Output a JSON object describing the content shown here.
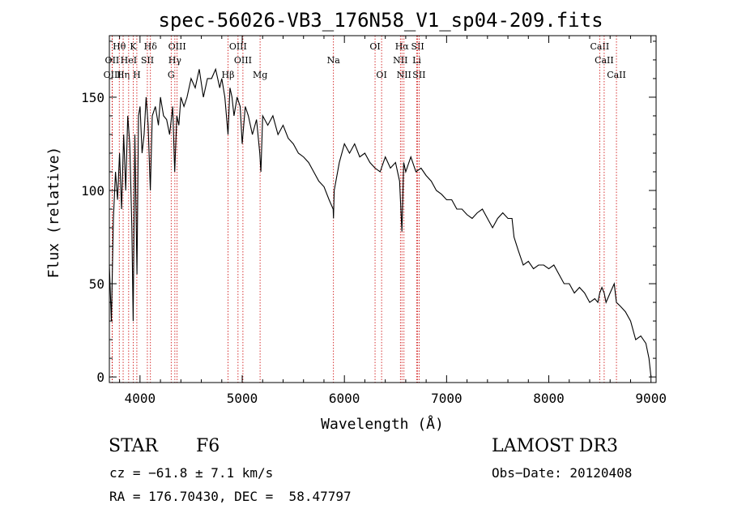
{
  "chart_data": {
    "type": "line",
    "title": "spec-56026-VB3_176N58_V1_sp04-209.fits",
    "xlabel": "Wavelength (Å)",
    "ylabel": "Flux (relative)",
    "xlim": [
      3700,
      9050
    ],
    "ylim": [
      -3,
      183
    ],
    "xticks": [
      4000,
      5000,
      6000,
      7000,
      8000,
      9000
    ],
    "yticks": [
      0,
      50,
      100,
      150
    ],
    "grid": false,
    "series": [
      {
        "name": "flux",
        "x": [
          3700,
          3720,
          3740,
          3760,
          3780,
          3800,
          3820,
          3840,
          3860,
          3880,
          3900,
          3920,
          3933,
          3950,
          3970,
          3985,
          4000,
          4020,
          4040,
          4060,
          4080,
          4101,
          4120,
          4150,
          4180,
          4200,
          4230,
          4260,
          4290,
          4320,
          4340,
          4360,
          4380,
          4400,
          4430,
          4460,
          4500,
          4540,
          4580,
          4620,
          4660,
          4700,
          4740,
          4780,
          4800,
          4830,
          4861,
          4880,
          4900,
          4920,
          4950,
          4980,
          5000,
          5030,
          5060,
          5100,
          5140,
          5172,
          5183,
          5200,
          5250,
          5300,
          5350,
          5400,
          5450,
          5500,
          5550,
          5600,
          5650,
          5700,
          5750,
          5800,
          5850,
          5890,
          5893,
          5900,
          5950,
          6000,
          6050,
          6100,
          6150,
          6200,
          6250,
          6300,
          6350,
          6400,
          6450,
          6500,
          6540,
          6563,
          6580,
          6600,
          6650,
          6700,
          6750,
          6800,
          6850,
          6900,
          6950,
          7000,
          7050,
          7100,
          7150,
          7200,
          7250,
          7300,
          7350,
          7400,
          7450,
          7500,
          7550,
          7600,
          7640,
          7660,
          7700,
          7750,
          7800,
          7850,
          7900,
          7950,
          8000,
          8050,
          8100,
          8150,
          8200,
          8250,
          8300,
          8350,
          8400,
          8450,
          8480,
          8498,
          8520,
          8542,
          8560,
          8600,
          8640,
          8662,
          8700,
          8750,
          8800,
          8850,
          8900,
          8950,
          8980,
          9000
        ],
        "values": [
          60,
          30,
          85,
          110,
          95,
          120,
          90,
          130,
          100,
          140,
          125,
          80,
          30,
          130,
          55,
          140,
          145,
          120,
          130,
          150,
          135,
          100,
          140,
          145,
          135,
          150,
          140,
          138,
          130,
          145,
          110,
          140,
          135,
          150,
          145,
          150,
          160,
          155,
          165,
          150,
          160,
          160,
          165,
          155,
          160,
          150,
          130,
          155,
          150,
          140,
          150,
          145,
          125,
          145,
          140,
          130,
          138,
          120,
          110,
          140,
          135,
          140,
          130,
          135,
          128,
          125,
          120,
          118,
          115,
          110,
          105,
          102,
          95,
          90,
          85,
          100,
          115,
          125,
          120,
          125,
          118,
          120,
          115,
          112,
          110,
          118,
          112,
          115,
          105,
          78,
          115,
          110,
          118,
          110,
          112,
          108,
          105,
          100,
          98,
          95,
          95,
          90,
          90,
          87,
          85,
          88,
          90,
          85,
          80,
          85,
          88,
          85,
          85,
          75,
          68,
          60,
          62,
          58,
          60,
          60,
          58,
          60,
          55,
          50,
          50,
          45,
          48,
          45,
          40,
          42,
          40,
          45,
          48,
          45,
          40,
          45,
          50,
          40,
          38,
          35,
          30,
          20,
          22,
          18,
          10,
          0
        ],
        "color": "#000000"
      }
    ],
    "lines": [
      {
        "name": "Hθ",
        "x": 3797,
        "row": 1
      },
      {
        "name": "OII",
        "x": 3727,
        "row": 2
      },
      {
        "name": "OIII",
        "x": 3729,
        "row": 3
      },
      {
        "name": "Hη",
        "x": 3835,
        "row": 3
      },
      {
        "name": "K",
        "x": 3934,
        "row": 1
      },
      {
        "name": "HeI",
        "x": 3889,
        "row": 2
      },
      {
        "name": "H",
        "x": 3969,
        "row": 3
      },
      {
        "name": "SII",
        "x": 4072,
        "row": 2
      },
      {
        "name": "Hδ",
        "x": 4102,
        "row": 1
      },
      {
        "name": "OIII",
        "x": 4363,
        "row": 1
      },
      {
        "name": "Hγ",
        "x": 4341,
        "row": 2
      },
      {
        "name": "G",
        "x": 4305,
        "row": 3
      },
      {
        "name": "Hβ",
        "x": 4861,
        "row": 3
      },
      {
        "name": "OIII",
        "x": 4959,
        "row": 1
      },
      {
        "name": "OIII",
        "x": 5007,
        "row": 2
      },
      {
        "name": "Mg",
        "x": 5175,
        "row": 3
      },
      {
        "name": "Na",
        "x": 5893,
        "row": 2
      },
      {
        "name": "OI",
        "x": 6300,
        "row": 1
      },
      {
        "name": "OI",
        "x": 6364,
        "row": 3
      },
      {
        "name": "Hα",
        "x": 6563,
        "row": 1
      },
      {
        "name": "NII",
        "x": 6548,
        "row": 2
      },
      {
        "name": "NII",
        "x": 6583,
        "row": 3
      },
      {
        "name": "SII",
        "x": 6717,
        "row": 1
      },
      {
        "name": "Li",
        "x": 6708,
        "row": 2
      },
      {
        "name": "SII",
        "x": 6731,
        "row": 3
      },
      {
        "name": "CaII",
        "x": 8498,
        "row": 1
      },
      {
        "name": "CaII",
        "x": 8542,
        "row": 2
      },
      {
        "name": "CaII",
        "x": 8662,
        "row": 3
      }
    ]
  },
  "info": {
    "object_type": "STAR",
    "subclass": "F6",
    "survey": "LAMOST DR3",
    "cz": "cz = −61.8 ± 7.1 km/s",
    "obs_date": "Obs−Date: 20120408",
    "coords": "RA = 176.70430, DEC =  58.47797"
  }
}
